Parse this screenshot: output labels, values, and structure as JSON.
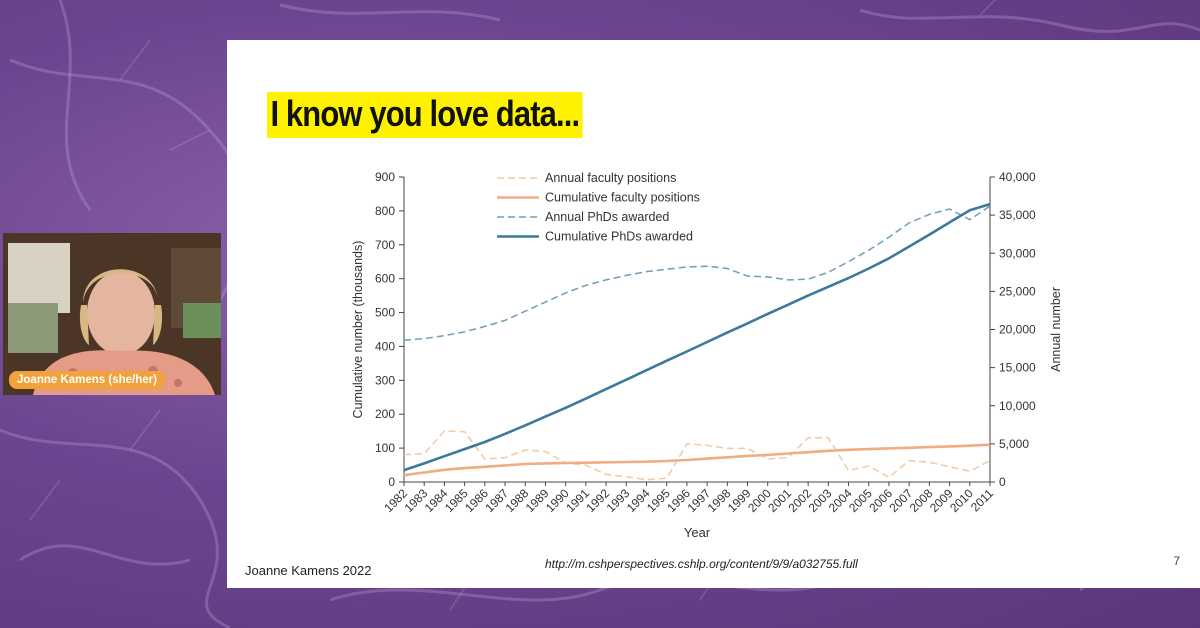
{
  "slide": {
    "title": "I know you love data...",
    "footer_left": "Joanne Kamens 2022",
    "footer_url": "http://m.cshperspectives.cshlp.org/content/9/9/a032755.full",
    "slide_number": "7"
  },
  "participant": {
    "name": "Joanne Kamens (she/her)"
  },
  "chart_data": {
    "type": "line",
    "x": [
      1982,
      1983,
      1984,
      1985,
      1986,
      1987,
      1988,
      1989,
      1990,
      1991,
      1992,
      1993,
      1994,
      1995,
      1996,
      1997,
      1998,
      1999,
      2000,
      2001,
      2002,
      2003,
      2004,
      2005,
      2006,
      2007,
      2008,
      2009,
      2010,
      2011
    ],
    "xlabel": "Year",
    "ylabel_left": "Cumulative number (thousands)",
    "ylabel_right": "Annual number",
    "ylim_left": [
      0,
      900
    ],
    "ylim_right": [
      0,
      40000
    ],
    "left_ticks": [
      "0",
      "100",
      "200",
      "300",
      "400",
      "500",
      "600",
      "700",
      "800",
      "900"
    ],
    "right_ticks": [
      "0",
      "5,000",
      "10,000",
      "15,000",
      "20,000",
      "25,000",
      "30,000",
      "35,000",
      "40,000"
    ],
    "series": [
      {
        "name": "Annual faculty positions",
        "axis": "right",
        "style": "dashed",
        "color": "#f1c9a6",
        "values": [
          3600,
          3700,
          6700,
          6600,
          3000,
          3200,
          4200,
          4000,
          2500,
          2200,
          1000,
          700,
          300,
          500,
          5000,
          4800,
          4400,
          4400,
          3000,
          3200,
          5800,
          5800,
          1500,
          2100,
          600,
          2800,
          2600,
          2000,
          1400,
          2800
        ]
      },
      {
        "name": "Cumulative faculty positions",
        "axis": "left",
        "style": "solid",
        "color": "#f0ad82",
        "values": [
          20,
          28,
          36,
          41,
          45,
          49,
          53,
          55,
          56,
          57,
          58,
          59,
          60,
          62,
          65,
          69,
          73,
          77,
          80,
          84,
          88,
          92,
          95,
          97,
          99,
          101,
          103,
          105,
          107,
          110
        ]
      },
      {
        "name": "Annual PhDs awarded",
        "axis": "right",
        "style": "dashed",
        "color": "#6f9db7",
        "values": [
          18600,
          18800,
          19200,
          19700,
          20400,
          21200,
          22400,
          23600,
          24800,
          25800,
          26500,
          27100,
          27600,
          27900,
          28200,
          28300,
          28000,
          27000,
          26900,
          26500,
          26600,
          27500,
          28900,
          30400,
          32100,
          34000,
          35100,
          35800,
          34400,
          36200
        ]
      },
      {
        "name": "Cumulative PhDs awarded",
        "axis": "left",
        "style": "solid",
        "color": "#3c7a9b",
        "values": [
          35,
          55,
          76,
          97,
          118,
          142,
          167,
          193,
          219,
          246,
          274,
          302,
          330,
          358,
          385,
          413,
          441,
          468,
          496,
          523,
          550,
          576,
          602,
          630,
          660,
          695,
          730,
          766,
          802,
          820
        ]
      }
    ]
  }
}
